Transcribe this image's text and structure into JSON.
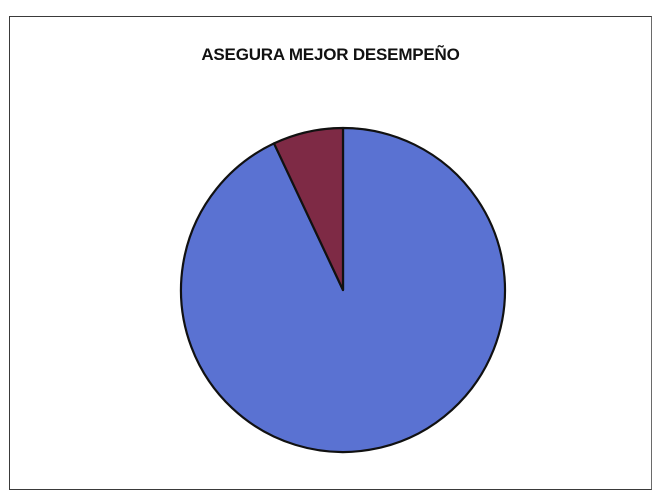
{
  "chart_data": {
    "type": "pie",
    "title": "ASEGURA MEJOR DESEMPEÑO",
    "slices": [
      {
        "value": 93,
        "color": "#5a72d2"
      },
      {
        "value": 7,
        "color": "#7e2a45"
      }
    ],
    "start": "12 o'clock",
    "direction": "clockwise",
    "legend": "none"
  }
}
